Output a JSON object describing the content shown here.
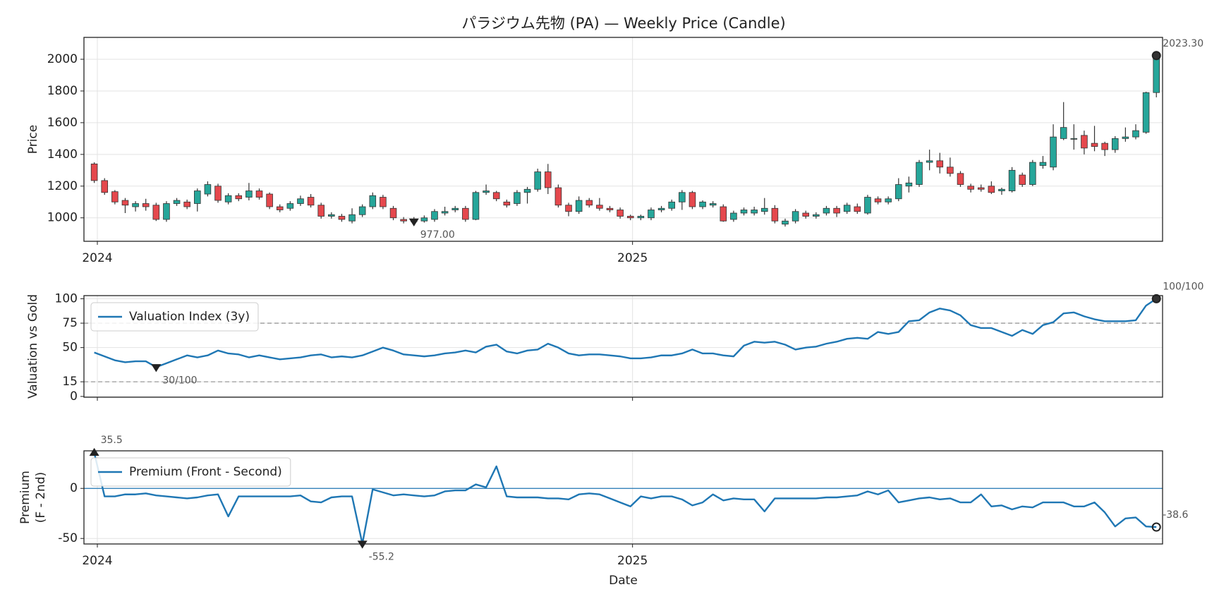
{
  "chart_data": [
    {
      "type": "candlestick",
      "title": "パラジウム先物 (PA) — Weekly Price (Candle)",
      "ylabel": [
        "Price"
      ],
      "up_color": "#26a69a",
      "down_color": "#e5484d",
      "grid": true,
      "x": [
        0,
        1,
        2,
        3,
        4,
        5,
        6,
        7,
        8,
        9,
        10,
        11,
        12,
        13,
        14,
        15,
        16,
        17,
        18,
        19,
        20,
        21,
        22,
        23,
        24,
        25,
        26,
        27,
        28,
        29,
        30,
        31,
        32,
        33,
        34,
        35,
        36,
        37,
        38,
        39,
        40,
        41,
        42,
        43,
        44,
        45,
        46,
        47,
        48,
        49,
        50,
        51,
        52,
        53,
        54,
        55,
        56,
        57,
        58,
        59,
        60,
        61,
        62,
        63,
        64,
        65,
        66,
        67,
        68,
        69,
        70,
        71,
        72,
        73,
        74,
        75,
        76,
        77,
        78,
        79,
        80,
        81,
        82,
        83,
        84,
        85,
        86,
        87,
        88,
        89,
        90,
        91,
        92,
        93,
        94,
        95,
        96,
        97,
        98,
        99,
        100,
        101,
        102,
        103
      ],
      "open": [
        1340,
        1235,
        1165,
        1110,
        1070,
        1090,
        1080,
        990,
        1090,
        1100,
        1090,
        1150,
        1200,
        1100,
        1140,
        1130,
        1170,
        1150,
        1070,
        1060,
        1090,
        1130,
        1080,
        1010,
        1010,
        980,
        1020,
        1070,
        1130,
        1060,
        990,
        990,
        980,
        990,
        1030,
        1050,
        1060,
        990,
        1160,
        1160,
        1100,
        1090,
        1160,
        1180,
        1290,
        1190,
        1080,
        1040,
        1110,
        1080,
        1060,
        1050,
        1010,
        1000,
        1000,
        1050,
        1060,
        1100,
        1160,
        1070,
        1080,
        1070,
        990,
        1030,
        1030,
        1040,
        1060,
        960,
        980,
        1030,
        1010,
        1030,
        1060,
        1040,
        1070,
        1030,
        1120,
        1100,
        1120,
        1200,
        1210,
        1350,
        1360,
        1320,
        1280,
        1200,
        1190,
        1200,
        1170,
        1170,
        1270,
        1210,
        1330,
        1320,
        1500,
        1500,
        1520,
        1470,
        1470,
        1430,
        1500,
        1510,
        1540,
        1790
      ],
      "high": [
        1350,
        1250,
        1175,
        1125,
        1105,
        1120,
        1095,
        1105,
        1125,
        1115,
        1185,
        1230,
        1215,
        1155,
        1155,
        1220,
        1185,
        1160,
        1085,
        1105,
        1140,
        1150,
        1095,
        1035,
        1025,
        1060,
        1085,
        1160,
        1145,
        1075,
        1005,
        1005,
        1015,
        1055,
        1070,
        1075,
        1075,
        1170,
        1210,
        1170,
        1115,
        1175,
        1195,
        1310,
        1340,
        1210,
        1095,
        1135,
        1125,
        1125,
        1075,
        1065,
        1020,
        1020,
        1065,
        1075,
        1115,
        1175,
        1170,
        1110,
        1105,
        1085,
        1045,
        1065,
        1070,
        1125,
        1080,
        995,
        1055,
        1045,
        1035,
        1075,
        1075,
        1095,
        1090,
        1145,
        1135,
        1135,
        1250,
        1260,
        1365,
        1430,
        1410,
        1380,
        1295,
        1215,
        1210,
        1230,
        1190,
        1320,
        1285,
        1365,
        1390,
        1590,
        1730,
        1590,
        1550,
        1580,
        1480,
        1515,
        1570,
        1590,
        1795,
        2050
      ],
      "low": [
        1220,
        1145,
        1085,
        1030,
        1040,
        1045,
        980,
        975,
        1075,
        1055,
        1040,
        1135,
        1095,
        1085,
        1105,
        1110,
        1115,
        1055,
        1035,
        1045,
        1075,
        1065,
        995,
        995,
        975,
        965,
        1005,
        1055,
        1055,
        985,
        965,
        950,
        970,
        975,
        1015,
        1035,
        975,
        985,
        1145,
        1105,
        1065,
        1075,
        1090,
        1165,
        1150,
        1065,
        1010,
        1025,
        1065,
        1045,
        1035,
        995,
        985,
        985,
        985,
        1035,
        1045,
        1050,
        1055,
        1055,
        1065,
        975,
        975,
        1015,
        1015,
        1020,
        965,
        945,
        965,
        995,
        995,
        1015,
        1005,
        1025,
        1025,
        1020,
        1085,
        1085,
        1105,
        1160,
        1195,
        1300,
        1280,
        1260,
        1195,
        1160,
        1165,
        1150,
        1145,
        1160,
        1195,
        1200,
        1310,
        1300,
        1490,
        1430,
        1400,
        1420,
        1390,
        1410,
        1480,
        1495,
        1530,
        1760
      ],
      "close": [
        1235,
        1160,
        1100,
        1080,
        1090,
        1070,
        990,
        1090,
        1110,
        1070,
        1170,
        1210,
        1110,
        1140,
        1120,
        1170,
        1130,
        1070,
        1050,
        1090,
        1120,
        1080,
        1010,
        1020,
        990,
        1020,
        1070,
        1140,
        1070,
        1000,
        980,
        977,
        1000,
        1040,
        1040,
        1060,
        990,
        1160,
        1170,
        1120,
        1080,
        1160,
        1180,
        1290,
        1190,
        1080,
        1040,
        1110,
        1080,
        1060,
        1050,
        1010,
        1000,
        1010,
        1050,
        1060,
        1100,
        1160,
        1070,
        1100,
        1090,
        980,
        1030,
        1050,
        1050,
        1060,
        980,
        980,
        1040,
        1010,
        1020,
        1060,
        1030,
        1080,
        1040,
        1130,
        1100,
        1120,
        1210,
        1220,
        1350,
        1360,
        1320,
        1280,
        1210,
        1180,
        1180,
        1160,
        1180,
        1300,
        1210,
        1350,
        1350,
        1510,
        1570,
        1500,
        1440,
        1450,
        1430,
        1500,
        1510,
        1550,
        1790,
        2023.3
      ],
      "xlim": [
        -1,
        103.6
      ],
      "xticks": [
        {
          "value": 0.3,
          "label": "2024"
        },
        {
          "value": 52.2,
          "label": "2025"
        }
      ],
      "ylim": [
        852,
        2138
      ],
      "yticks": [
        1000,
        1200,
        1400,
        1600,
        1800,
        2000
      ],
      "annotations": [
        {
          "x": 103,
          "y": 2023.3,
          "label": "2023.30",
          "marker": "circle"
        },
        {
          "x": 31,
          "y": 977,
          "label": "977.00",
          "marker": "triangle-down"
        }
      ]
    },
    {
      "type": "line",
      "ylabel": [
        "Valuation vs Gold"
      ],
      "grid": true,
      "legend": "upper left",
      "x": [
        0,
        1,
        2,
        3,
        4,
        5,
        6,
        7,
        8,
        9,
        10,
        11,
        12,
        13,
        14,
        15,
        16,
        17,
        18,
        19,
        20,
        21,
        22,
        23,
        24,
        25,
        26,
        27,
        28,
        29,
        30,
        31,
        32,
        33,
        34,
        35,
        36,
        37,
        38,
        39,
        40,
        41,
        42,
        43,
        44,
        45,
        46,
        47,
        48,
        49,
        50,
        51,
        52,
        53,
        54,
        55,
        56,
        57,
        58,
        59,
        60,
        61,
        62,
        63,
        64,
        65,
        66,
        67,
        68,
        69,
        70,
        71,
        72,
        73,
        74,
        75,
        76,
        77,
        78,
        79,
        80,
        81,
        82,
        83,
        84,
        85,
        86,
        87,
        88,
        89,
        90,
        91,
        92,
        93,
        94,
        95,
        96,
        97,
        98,
        99,
        100,
        101,
        102,
        103
      ],
      "series": [
        {
          "name": "Valuation Index (3y)",
          "color": "#1f77b4",
          "values": [
            45,
            41,
            37,
            35,
            36,
            36,
            30,
            34,
            38,
            42,
            40,
            42,
            47,
            44,
            43,
            40,
            42,
            40,
            38,
            39,
            40,
            42,
            43,
            40,
            41,
            40,
            42,
            46,
            50,
            47,
            43,
            42,
            41,
            42,
            44,
            45,
            47,
            45,
            51,
            53,
            46,
            44,
            47,
            48,
            54,
            50,
            44,
            42,
            43,
            43,
            42,
            41,
            39,
            39,
            40,
            42,
            42,
            44,
            48,
            44,
            44,
            42,
            41,
            52,
            56,
            55,
            56,
            53,
            48,
            50,
            51,
            54,
            56,
            59,
            60,
            59,
            66,
            64,
            66,
            77,
            78,
            86,
            90,
            88,
            83,
            73,
            70,
            70,
            66,
            62,
            68,
            64,
            73,
            76,
            85,
            86,
            82,
            79,
            77,
            77,
            77,
            78,
            93,
            100
          ]
        }
      ],
      "xlim": [
        -1,
        103.6
      ],
      "xticks": [
        0.3,
        52.2
      ],
      "xtick_labels": false,
      "ylim": [
        -0.8,
        103.2
      ],
      "yticks": [
        0,
        15,
        50,
        75,
        100
      ],
      "hlines": [
        {
          "y": 75,
          "style": "dashed",
          "color": "#999999"
        },
        {
          "y": 15,
          "style": "dashed",
          "color": "#999999"
        }
      ],
      "annotations": [
        {
          "x": 103,
          "y": 100,
          "label": "100/100",
          "marker": "circle"
        },
        {
          "x": 6,
          "y": 30,
          "label": "30/100",
          "marker": "triangle-down"
        }
      ]
    },
    {
      "type": "line",
      "ylabel": [
        "Premium",
        "(F - 2nd)"
      ],
      "xlabel": "Date",
      "grid": true,
      "legend": "upper left",
      "x": [
        0,
        1,
        2,
        3,
        4,
        5,
        6,
        7,
        8,
        9,
        10,
        11,
        12,
        13,
        14,
        15,
        16,
        17,
        18,
        19,
        20,
        21,
        22,
        23,
        24,
        25,
        26,
        27,
        28,
        29,
        30,
        31,
        32,
        33,
        34,
        35,
        36,
        37,
        38,
        39,
        40,
        41,
        42,
        43,
        44,
        45,
        46,
        47,
        48,
        49,
        50,
        51,
        52,
        53,
        54,
        55,
        56,
        57,
        58,
        59,
        60,
        61,
        62,
        63,
        64,
        65,
        66,
        67,
        68,
        69,
        70,
        71,
        72,
        73,
        74,
        75,
        76,
        77,
        78,
        79,
        80,
        81,
        82,
        83,
        84,
        85,
        86,
        87,
        88,
        89,
        90,
        91,
        92,
        93,
        94,
        95,
        96,
        97,
        98,
        99,
        100,
        101,
        102,
        103
      ],
      "series": [
        {
          "name": "Premium (Front - Second)",
          "color": "#1f77b4",
          "values": [
            35.5,
            -8,
            -8,
            -6,
            -6,
            -5,
            -7,
            -8,
            -9,
            -10,
            -9,
            -7,
            -6,
            -28,
            -8,
            -8,
            -8,
            -8,
            -8,
            -8,
            -7,
            -13,
            -14,
            -9,
            -8,
            -8,
            -55.2,
            -1,
            -4,
            -7,
            -6,
            -7,
            -8,
            -7,
            -3,
            -2,
            -2,
            4,
            1,
            22,
            -8,
            -9,
            -9,
            -9,
            -10,
            -10,
            -11,
            -6,
            -5,
            -6,
            -10,
            -14,
            -18,
            -8,
            -10,
            -8,
            -8,
            -11,
            -17,
            -14,
            -6,
            -12,
            -10,
            -11,
            -11,
            -23,
            -10,
            -10,
            -10,
            -10,
            -10,
            -9,
            -9,
            -8,
            -7,
            -3,
            -6,
            -2,
            -14,
            -12,
            -10,
            -9,
            -11,
            -10,
            -14,
            -14,
            -6,
            -18,
            -17,
            -21,
            -18,
            -19,
            -14,
            -14,
            -14,
            -18,
            -18,
            -14,
            -24,
            -38,
            -30,
            -29,
            -38,
            -38.6
          ]
        }
      ],
      "xlim": [
        -1,
        103.6
      ],
      "xticks": [
        {
          "value": 0.3,
          "label": "2024"
        },
        {
          "value": 52.2,
          "label": "2025"
        }
      ],
      "ylim": [
        -55.5,
        37.5
      ],
      "yticks": [
        -50,
        0
      ],
      "hlines": [
        {
          "y": 0,
          "style": "solid",
          "color": "#1f77b4"
        }
      ],
      "annotations": [
        {
          "x": 0,
          "y": 35.5,
          "marker": "triangle-up"
        },
        {
          "x": 26,
          "y": -55.2,
          "marker": "triangle-down"
        },
        {
          "x": 103,
          "y": -38.6,
          "marker": "circle"
        }
      ]
    }
  ]
}
